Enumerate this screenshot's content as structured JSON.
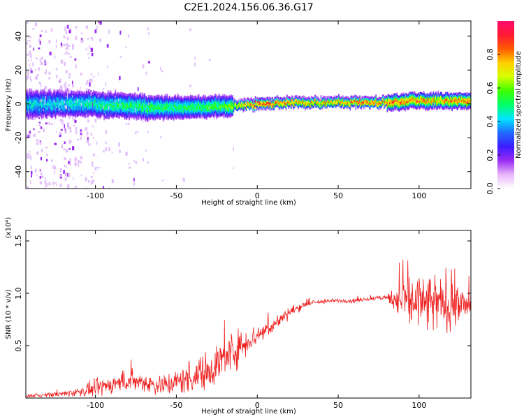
{
  "title": "C2E1.2024.156.06.36.G17",
  "chart_data": [
    {
      "type": "heatmap",
      "xlabel": "Height of straight line (km)",
      "ylabel": "Frequency (Hz)",
      "xlim": [
        -143,
        132
      ],
      "ylim": [
        -50,
        49
      ],
      "xticks": [
        -100,
        -50,
        0,
        50,
        100
      ],
      "yticks": [
        -40,
        -20,
        0,
        20,
        40
      ],
      "colorbar": {
        "label": "Normalized spectral amplitude",
        "range": [
          0,
          1
        ],
        "ticks": [
          "0.0",
          "0.2",
          "0.4",
          "0.6",
          "0.8"
        ],
        "tick_values": [
          0.0,
          0.2,
          0.4,
          0.6,
          0.8
        ],
        "colormap": [
          "#ffffff",
          "#e9b6fb",
          "#9a2cf3",
          "#3b1cff",
          "#1f6bff",
          "#00e5ff",
          "#00ff66",
          "#3dff00",
          "#d5ff00",
          "#ffd000",
          "#ff5a00",
          "#ff1a33",
          "#ff0a6e"
        ]
      },
      "ridge": {
        "x": [
          -143,
          -120,
          -100,
          -80,
          -60,
          -40,
          -20,
          0,
          20,
          40,
          60,
          80,
          100,
          110,
          120,
          132
        ],
        "center_hz": [
          0,
          0,
          0,
          -1,
          -2,
          -2,
          -1,
          0,
          1,
          1,
          1,
          1,
          2,
          2,
          2,
          2
        ],
        "peak_amplitude": [
          0.45,
          0.45,
          0.5,
          0.55,
          0.55,
          0.55,
          0.6,
          0.95,
          0.85,
          0.8,
          0.9,
          0.9,
          0.85,
          0.8,
          0.85,
          0.85
        ]
      }
    },
    {
      "type": "line",
      "xlabel": "Height of straight line (km)",
      "ylabel": "SNR (10 * v/v)",
      "y_multiplier": "(x10⁴)",
      "xlim": [
        -143,
        132
      ],
      "ylim": [
        0,
        1.6
      ],
      "xticks": [
        -100,
        -50,
        0,
        50,
        100
      ],
      "yticks": [
        "0.5",
        "1.0",
        "1.5"
      ],
      "ytick_values": [
        0.5,
        1.0,
        1.5
      ],
      "color": "#ee2222",
      "series": [
        {
          "x": [
            -143,
            -130,
            -120,
            -110,
            -100,
            -90,
            -80,
            -70,
            -60,
            -50,
            -40,
            -30,
            -20,
            -15,
            -10,
            0,
            10,
            20,
            30,
            40,
            50,
            60,
            70,
            80,
            85,
            90,
            100,
            110,
            120,
            132
          ],
          "values": [
            0.02,
            0.03,
            0.04,
            0.06,
            0.09,
            0.13,
            0.17,
            0.15,
            0.12,
            0.15,
            0.2,
            0.27,
            0.38,
            0.45,
            0.5,
            0.6,
            0.7,
            0.82,
            0.9,
            0.92,
            0.93,
            0.93,
            0.95,
            0.96,
            0.95,
            0.95,
            0.9,
            0.9,
            0.9,
            0.88
          ],
          "noise": [
            0.015,
            0.02,
            0.03,
            0.04,
            0.08,
            0.08,
            0.1,
            0.09,
            0.1,
            0.12,
            0.15,
            0.18,
            0.2,
            0.18,
            0.15,
            0.1,
            0.07,
            0.05,
            0.03,
            0.02,
            0.02,
            0.02,
            0.02,
            0.03,
            0.1,
            0.25,
            0.3,
            0.28,
            0.25,
            0.12
          ]
        }
      ]
    }
  ]
}
